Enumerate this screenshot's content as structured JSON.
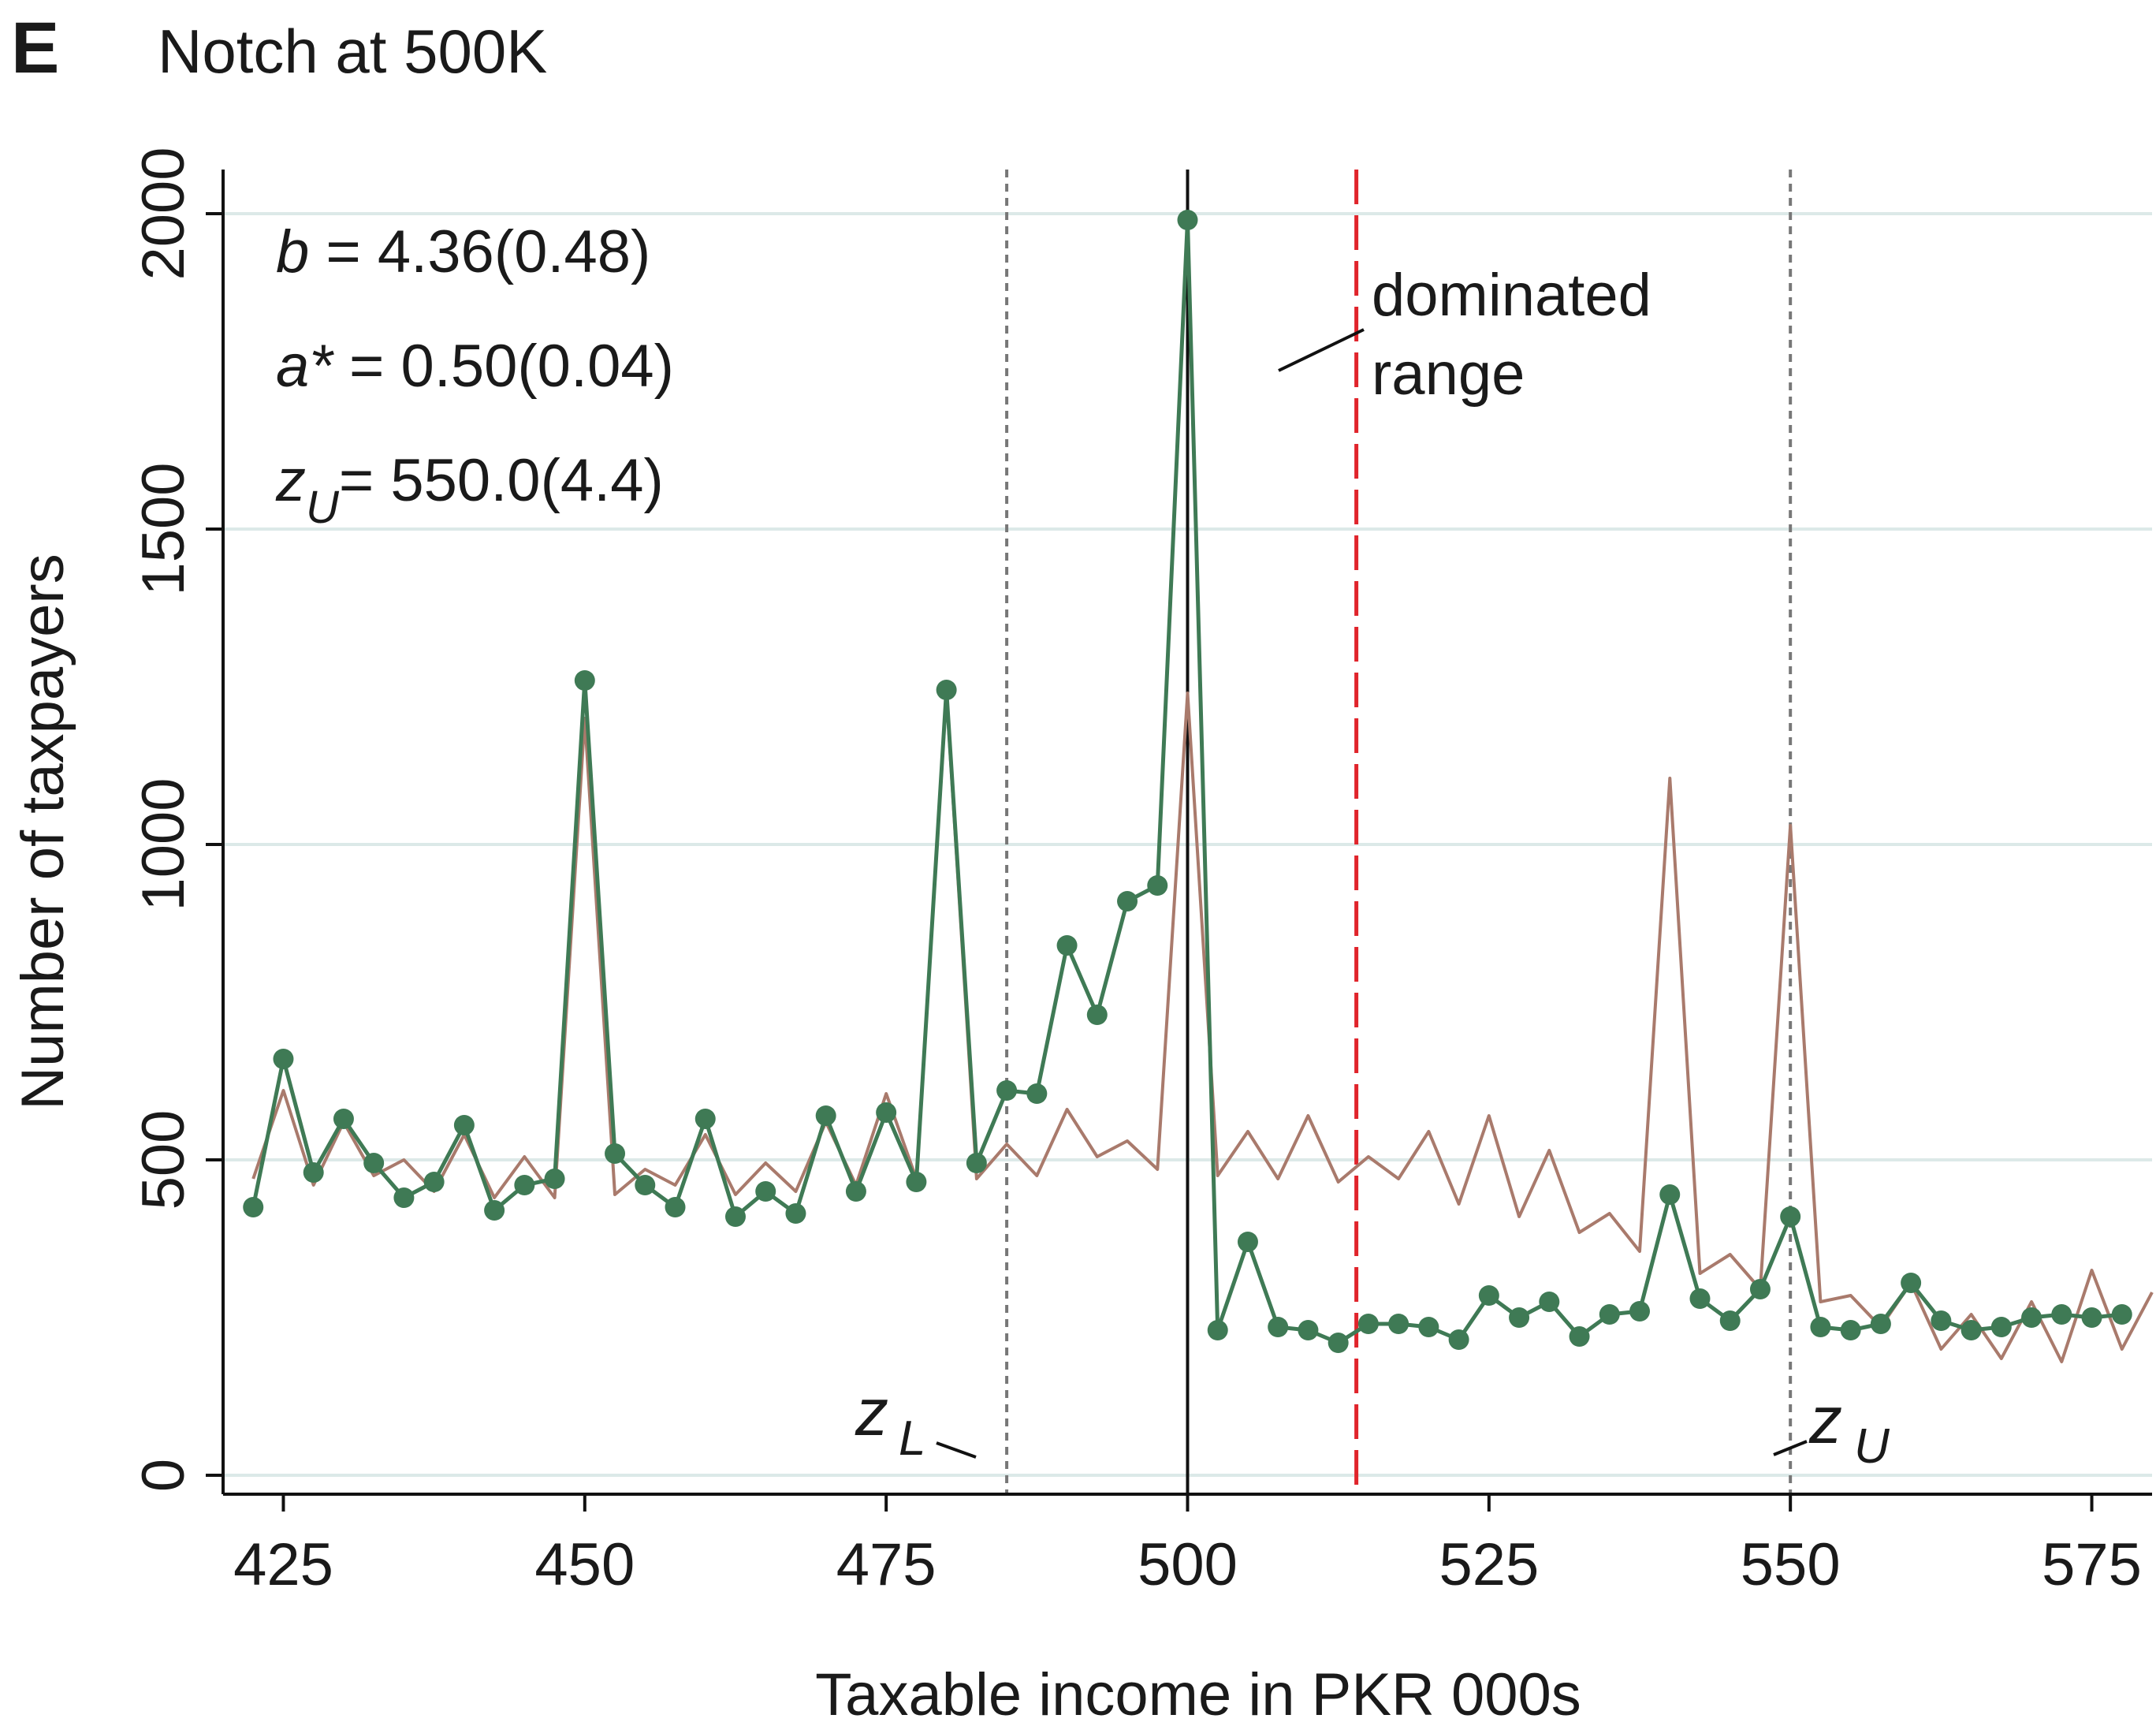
{
  "panel_letter": "E",
  "stats": [
    {
      "symbol": "b",
      "sub": "",
      "text": " = 4.36(0.48)"
    },
    {
      "symbol": "a*",
      "sub": "",
      "text": " = 0.50(0.04)"
    },
    {
      "symbol": "z",
      "sub": "U",
      "text": "= 550.0(4.4)"
    }
  ],
  "annotations": {
    "dominated_range": [
      "dominated",
      "range"
    ],
    "z_lower": {
      "symbol": "z",
      "sub": "L"
    },
    "z_upper": {
      "symbol": "z",
      "sub": "U"
    }
  },
  "colors": {
    "observed": "#3f7a55",
    "counterfactual": "#a97a6c",
    "dominated_line": "#e0242b",
    "bounds_line": "#777777",
    "notch_line": "#111111",
    "grid": "#dce9e8"
  },
  "chart_data": {
    "type": "line",
    "title": "Notch at 500K",
    "xlabel": "Taxable income in PKR 000s",
    "ylabel": "Number of taxpayers",
    "xlim": [
      420,
      580
    ],
    "ylim": [
      -30,
      2070
    ],
    "x_ticks": [
      425,
      450,
      475,
      500,
      525,
      550,
      575
    ],
    "y_ticks": [
      0,
      500,
      1000,
      1500,
      2000
    ],
    "grid": "horizontal",
    "vertical_lines": [
      {
        "x": 485,
        "style": "dotted",
        "role": "z_L"
      },
      {
        "x": 500,
        "style": "solid",
        "role": "notch"
      },
      {
        "x": 514,
        "style": "dashed",
        "role": "dominated range"
      },
      {
        "x": 550,
        "style": "dotted",
        "role": "z_U"
      }
    ],
    "series": [
      {
        "role": "observed",
        "style": "line+markers",
        "points": [
          [
            422.5,
            425
          ],
          [
            425,
            660
          ],
          [
            427.5,
            480
          ],
          [
            430,
            565
          ],
          [
            432.5,
            495
          ],
          [
            435,
            440
          ],
          [
            437.5,
            465
          ],
          [
            440,
            555
          ],
          [
            442.5,
            420
          ],
          [
            445,
            460
          ],
          [
            447.5,
            470
          ],
          [
            450,
            1260
          ],
          [
            452.5,
            510
          ],
          [
            455,
            460
          ],
          [
            457.5,
            425
          ],
          [
            460,
            565
          ],
          [
            462.5,
            410
          ],
          [
            465,
            450
          ],
          [
            467.5,
            415
          ],
          [
            470,
            570
          ],
          [
            472.5,
            450
          ],
          [
            475,
            575
          ],
          [
            477.5,
            465
          ],
          [
            480,
            1245
          ],
          [
            482.5,
            495
          ],
          [
            485,
            610
          ],
          [
            487.5,
            605
          ],
          [
            490,
            840
          ],
          [
            492.5,
            730
          ],
          [
            495,
            910
          ],
          [
            497.5,
            935
          ],
          [
            500,
            1990
          ],
          [
            502.5,
            230
          ],
          [
            505,
            370
          ],
          [
            507.5,
            235
          ],
          [
            510,
            230
          ],
          [
            512.5,
            210
          ],
          [
            515,
            240
          ],
          [
            517.5,
            240
          ],
          [
            520,
            235
          ],
          [
            522.5,
            215
          ],
          [
            525,
            285
          ],
          [
            527.5,
            250
          ],
          [
            530,
            275
          ],
          [
            532.5,
            220
          ],
          [
            535,
            255
          ],
          [
            537.5,
            260
          ],
          [
            540,
            445
          ],
          [
            542.5,
            280
          ],
          [
            545,
            245
          ],
          [
            547.5,
            295
          ],
          [
            550,
            410
          ],
          [
            552.5,
            235
          ],
          [
            555,
            230
          ],
          [
            557.5,
            240
          ],
          [
            560,
            305
          ],
          [
            562.5,
            245
          ],
          [
            565,
            230
          ],
          [
            567.5,
            235
          ],
          [
            570,
            250
          ],
          [
            572.5,
            255
          ],
          [
            575,
            250
          ],
          [
            577.5,
            255
          ]
        ]
      },
      {
        "role": "counterfactual",
        "style": "line",
        "points": [
          [
            422.5,
            470
          ],
          [
            425,
            610
          ],
          [
            427.5,
            460
          ],
          [
            430,
            560
          ],
          [
            432.5,
            475
          ],
          [
            435,
            500
          ],
          [
            437.5,
            450
          ],
          [
            440,
            540
          ],
          [
            442.5,
            440
          ],
          [
            445,
            505
          ],
          [
            447.5,
            440
          ],
          [
            450,
            1200
          ],
          [
            452.5,
            445
          ],
          [
            455,
            485
          ],
          [
            457.5,
            460
          ],
          [
            460,
            540
          ],
          [
            462.5,
            445
          ],
          [
            465,
            495
          ],
          [
            467.5,
            450
          ],
          [
            470,
            560
          ],
          [
            472.5,
            460
          ],
          [
            475,
            605
          ],
          [
            477.5,
            470
          ],
          [
            480,
            1240
          ],
          [
            482.5,
            470
          ],
          [
            485,
            525
          ],
          [
            487.5,
            475
          ],
          [
            490,
            580
          ],
          [
            492.5,
            505
          ],
          [
            495,
            530
          ],
          [
            497.5,
            485
          ],
          [
            500,
            1240
          ],
          [
            502.5,
            475
          ],
          [
            505,
            545
          ],
          [
            507.5,
            470
          ],
          [
            510,
            570
          ],
          [
            512.5,
            465
          ],
          [
            515,
            505
          ],
          [
            517.5,
            470
          ],
          [
            520,
            545
          ],
          [
            522.5,
            430
          ],
          [
            525,
            570
          ],
          [
            527.5,
            410
          ],
          [
            530,
            515
          ],
          [
            532.5,
            385
          ],
          [
            535,
            415
          ],
          [
            537.5,
            355
          ],
          [
            540,
            1105
          ],
          [
            542.5,
            320
          ],
          [
            545,
            350
          ],
          [
            547.5,
            295
          ],
          [
            550,
            1030
          ],
          [
            552.5,
            275
          ],
          [
            555,
            285
          ],
          [
            557.5,
            235
          ],
          [
            560,
            305
          ],
          [
            562.5,
            200
          ],
          [
            565,
            255
          ],
          [
            567.5,
            185
          ],
          [
            570,
            275
          ],
          [
            572.5,
            180
          ],
          [
            575,
            325
          ],
          [
            577.5,
            200
          ],
          [
            580,
            290
          ]
        ]
      }
    ]
  }
}
